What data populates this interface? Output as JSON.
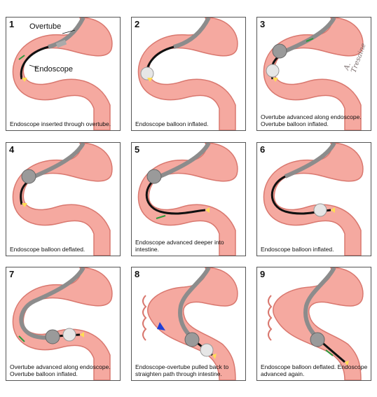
{
  "labels": {
    "overtube": "Overtube",
    "endoscope": "Endoscope"
  },
  "signature": "A. Tresaine",
  "panels": [
    {
      "number": "1",
      "caption": "Endoscope inserted through overtube."
    },
    {
      "number": "2",
      "caption": "Endoscope balloon inflated."
    },
    {
      "number": "3",
      "caption": "Overtube advanced along endoscope. Overtube balloon inflated."
    },
    {
      "number": "4",
      "caption": "Endoscope balloon deflated."
    },
    {
      "number": "5",
      "caption": "Endoscope advanced deeper into intestine."
    },
    {
      "number": "6",
      "caption": "Endoscope balloon inflated."
    },
    {
      "number": "7",
      "caption": "Overtube advanced along endoscope. Overtube balloon inflated."
    },
    {
      "number": "8",
      "caption": "Endoscope-overtube pulled back to straighten path through intestine."
    },
    {
      "number": "9",
      "caption": "Endoscope balloon deflated. Endoscope advanced again."
    }
  ],
  "colors": {
    "intestine_fill": "#f5a9a0",
    "intestine_edge": "#d9786f",
    "overtube": "#8c8c8c",
    "endoscope": "#111111",
    "balloon": "#e6e6e6",
    "arrow_green": "#2a9a3a",
    "arrow_blue": "#1f3fd6"
  }
}
